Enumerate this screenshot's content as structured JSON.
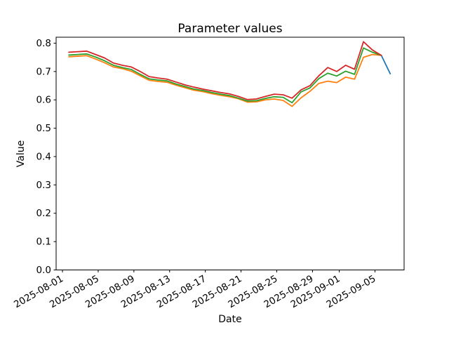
{
  "chart_data": {
    "type": "line",
    "title": "Parameter values",
    "xlabel": "Date",
    "ylabel": "Value",
    "grid": false,
    "legend": null,
    "ylim": [
      0.0,
      0.821
    ],
    "xlim_days": [
      -0.71,
      38.26
    ],
    "y_ticks": [
      {
        "value": 0.0,
        "label": "0.0"
      },
      {
        "value": 0.1,
        "label": "0.1"
      },
      {
        "value": 0.2,
        "label": "0.2"
      },
      {
        "value": 0.3,
        "label": "0.3"
      },
      {
        "value": 0.4,
        "label": "0.4"
      },
      {
        "value": 0.5,
        "label": "0.5"
      },
      {
        "value": 0.6,
        "label": "0.6"
      },
      {
        "value": 0.7,
        "label": "0.7"
      },
      {
        "value": 0.8,
        "label": "0.8"
      }
    ],
    "x_ticks": [
      {
        "day": 0,
        "label": "2025-08-01"
      },
      {
        "day": 4,
        "label": "2025-08-05"
      },
      {
        "day": 8,
        "label": "2025-08-09"
      },
      {
        "day": 12,
        "label": "2025-08-13"
      },
      {
        "day": 16,
        "label": "2025-08-17"
      },
      {
        "day": 20,
        "label": "2025-08-21"
      },
      {
        "day": 24,
        "label": "2025-08-25"
      },
      {
        "day": 28,
        "label": "2025-08-29"
      },
      {
        "day": 31,
        "label": "2025-09-01"
      },
      {
        "day": 35,
        "label": "2025-09-05"
      }
    ],
    "series": [
      {
        "name": "series-blue",
        "color": "#1f77b4",
        "start_day": 35.71,
        "day_step": 1,
        "values": [
          0.757,
          0.692
        ]
      },
      {
        "name": "series-orange",
        "color": "#ff7f0e",
        "start_day": 0.71,
        "day_step": 1,
        "values": [
          0.752,
          0.754,
          0.756,
          0.744,
          0.731,
          0.716,
          0.71,
          0.701,
          0.685,
          0.669,
          0.665,
          0.662,
          0.652,
          0.643,
          0.634,
          0.629,
          0.622,
          0.616,
          0.611,
          0.604,
          0.592,
          0.593,
          0.6,
          0.603,
          0.598,
          0.577,
          0.607,
          0.63,
          0.658,
          0.666,
          0.661,
          0.68,
          0.673,
          0.75,
          0.76,
          0.757
        ]
      },
      {
        "name": "series-green",
        "color": "#2ca02c",
        "start_day": 0.71,
        "day_step": 1,
        "values": [
          0.758,
          0.76,
          0.762,
          0.751,
          0.738,
          0.722,
          0.714,
          0.707,
          0.69,
          0.674,
          0.67,
          0.667,
          0.656,
          0.647,
          0.638,
          0.633,
          0.626,
          0.62,
          0.615,
          0.606,
          0.596,
          0.597,
          0.605,
          0.611,
          0.609,
          0.59,
          0.628,
          0.642,
          0.675,
          0.694,
          0.684,
          0.701,
          0.69,
          0.783,
          0.768,
          0.757
        ]
      },
      {
        "name": "series-red",
        "color": "#d62728",
        "start_day": 0.71,
        "day_step": 1,
        "values": [
          0.768,
          0.77,
          0.772,
          0.76,
          0.748,
          0.73,
          0.722,
          0.716,
          0.7,
          0.682,
          0.677,
          0.673,
          0.663,
          0.653,
          0.645,
          0.638,
          0.632,
          0.626,
          0.621,
          0.612,
          0.601,
          0.603,
          0.612,
          0.62,
          0.618,
          0.606,
          0.635,
          0.65,
          0.685,
          0.714,
          0.7,
          0.722,
          0.708,
          0.805,
          0.776,
          0.757
        ]
      }
    ]
  }
}
